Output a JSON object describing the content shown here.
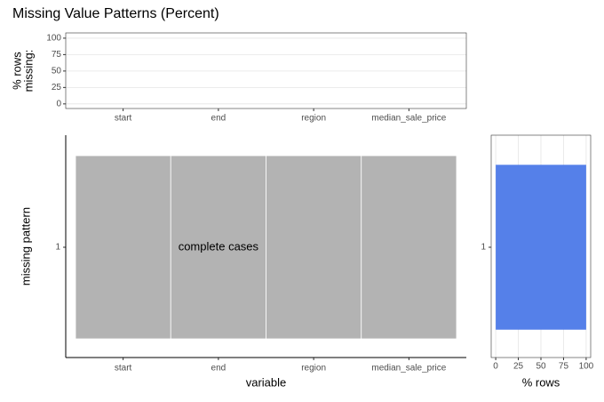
{
  "title": "Missing Value Patterns (Percent)",
  "chart_data": [
    {
      "type": "bar",
      "ylabel": [
        "% rows",
        "missing:"
      ],
      "categories": [
        "start",
        "end",
        "region",
        "median_sale_price"
      ],
      "values": [
        0,
        0,
        0,
        0
      ],
      "ylim": [
        -7,
        108
      ],
      "yticks": [
        0,
        25,
        50,
        75,
        100
      ],
      "grid": true,
      "color": "#5580e9"
    },
    {
      "type": "tile",
      "xlabel": "variable",
      "ylabel": "missing pattern",
      "categories": [
        "start",
        "end",
        "region",
        "median_sale_price"
      ],
      "rows": [
        "1"
      ],
      "missing": [
        [
          false,
          false,
          false,
          false
        ]
      ],
      "color": "#b3b3b3",
      "annotation": "complete cases"
    },
    {
      "type": "barh",
      "xlabel": "% rows",
      "categories": [
        "1"
      ],
      "values": [
        100
      ],
      "xlim": [
        -5,
        105
      ],
      "xticks": [
        0,
        25,
        50,
        75,
        100
      ],
      "grid": true,
      "color": "#5580e9"
    }
  ]
}
